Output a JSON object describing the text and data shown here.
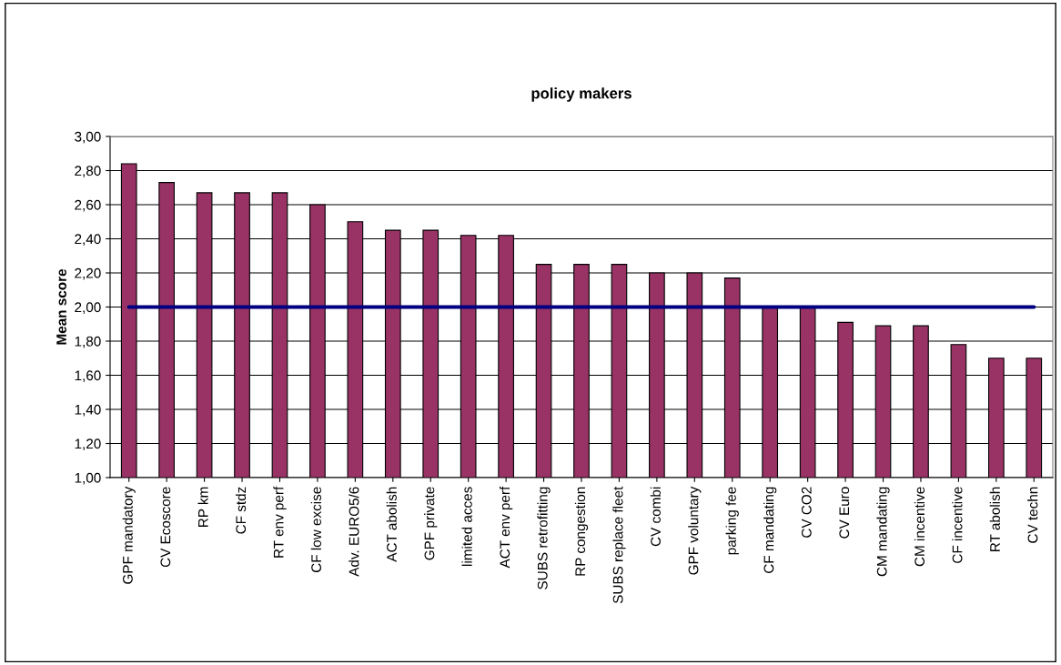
{
  "chart_data": {
    "type": "bar",
    "title": "policy makers",
    "ylabel": "Mean score",
    "categories": [
      "GPF mandatory",
      "CV Ecoscore",
      "RP km",
      "CF stdz",
      "RT env perf",
      "CF low excise",
      "Adv. EURO5/6",
      "ACT abolish",
      "GPF private",
      "limited acces",
      "ACT env perf",
      "SUBS retrofitting",
      "RP congestion",
      "SUBS replace fleet",
      "CV combi",
      "GPF voluntary",
      "parking fee",
      "CF mandating",
      "CV CO2",
      "CV Euro",
      "CM mandating",
      "CM incentive",
      "CF incentive",
      "RT abolish",
      "CV techn"
    ],
    "series": [
      {
        "color": "#993366",
        "values": [
          2.84,
          2.73,
          2.67,
          2.67,
          2.67,
          2.6,
          2.5,
          2.45,
          2.45,
          2.42,
          2.42,
          2.25,
          2.25,
          2.25,
          2.2,
          2.2,
          2.17,
          2.0,
          2.0,
          1.91,
          1.89,
          1.89,
          1.78,
          1.7,
          1.7
        ]
      },
      {
        "type": "line",
        "color": "#000080",
        "values": [
          2,
          2,
          2,
          2,
          2,
          2,
          2,
          2,
          2,
          2,
          2,
          2,
          2,
          2,
          2,
          2,
          2,
          2,
          2,
          2,
          2,
          2,
          2,
          2,
          2
        ]
      }
    ],
    "ylim": [
      1,
      3
    ],
    "yticks": [
      {
        "value": 1,
        "label": "1,00"
      },
      {
        "value": 1.2,
        "label": "1,20"
      },
      {
        "value": 1.4,
        "label": "1,40"
      },
      {
        "value": 1.6,
        "label": "1,60"
      },
      {
        "value": 1.8,
        "label": "1,80"
      },
      {
        "value": 2,
        "label": "2,00"
      },
      {
        "value": 2.2,
        "label": "2,20"
      },
      {
        "value": 2.4,
        "label": "2,40"
      },
      {
        "value": 2.6,
        "label": "2,60"
      },
      {
        "value": 2.8,
        "label": "2,80"
      },
      {
        "value": 3,
        "label": "3,00"
      }
    ],
    "grid": "y",
    "legend": false
  }
}
